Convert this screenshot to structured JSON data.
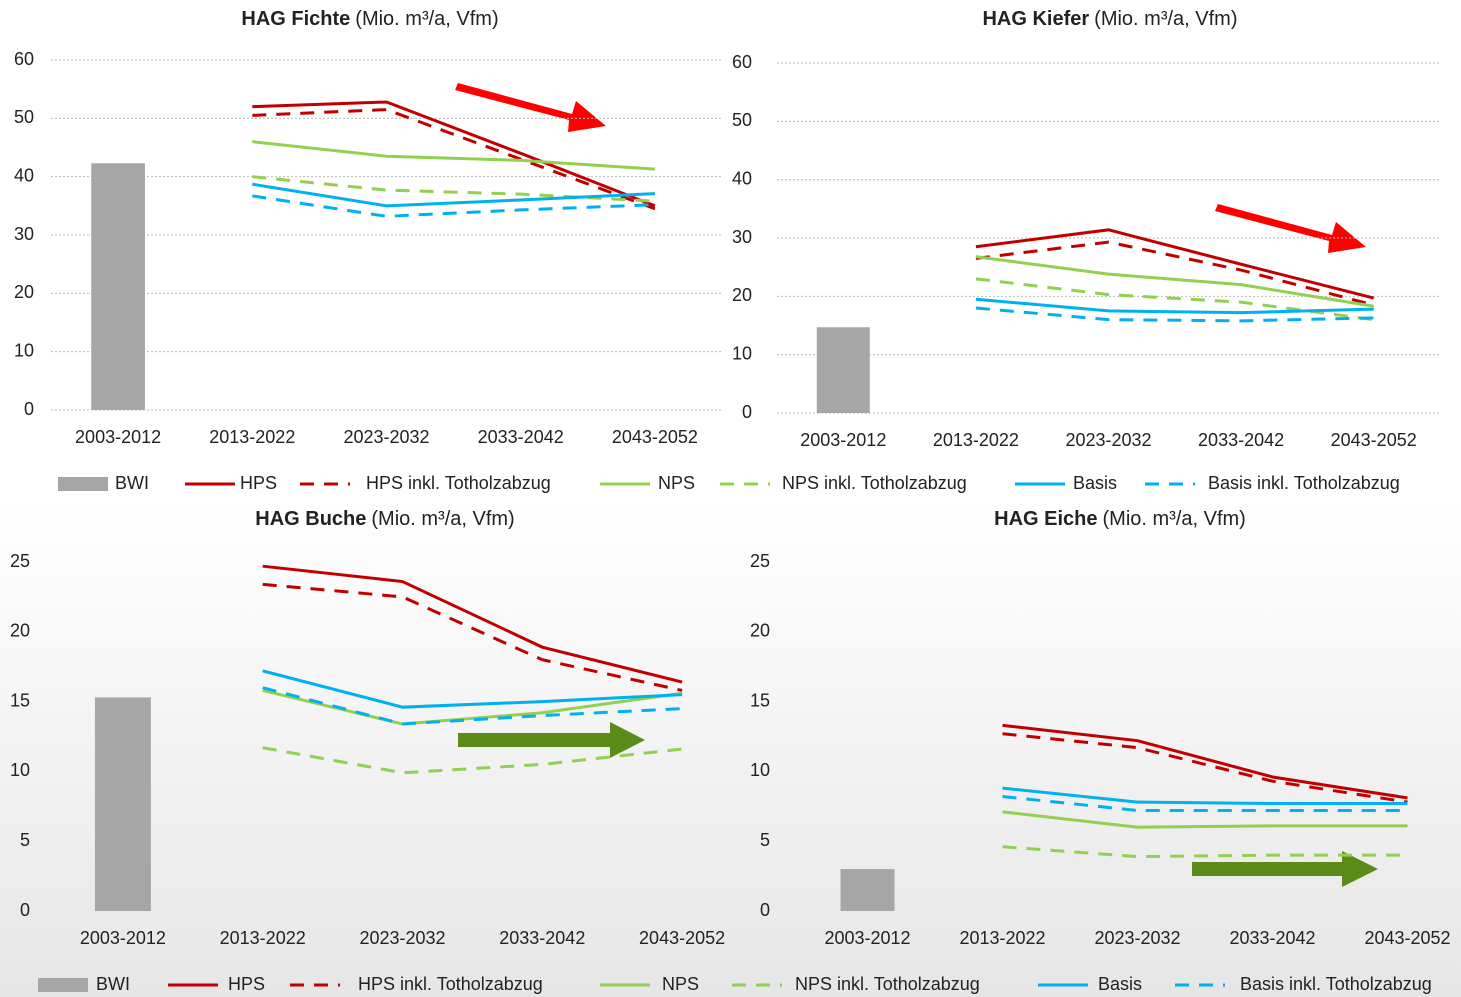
{
  "chart_data": [
    {
      "type": "line",
      "title": "HAG Fichte",
      "subtitle": "(Mio. m³/a, Vfm)",
      "categories": [
        "2003-2012",
        "2013-2022",
        "2023-2032",
        "2033-2042",
        "2043-2052"
      ],
      "ylim": [
        0,
        60
      ],
      "yticks": [
        0,
        10,
        20,
        30,
        40,
        50,
        60
      ],
      "grid": true,
      "series": [
        {
          "name": "BWI",
          "type": "bar",
          "color": "#a6a6a6",
          "values": [
            42.3,
            null,
            null,
            null,
            null
          ]
        },
        {
          "name": "HPS",
          "color": "#c00000",
          "dashed": false,
          "values": [
            null,
            52,
            52.8,
            44,
            35
          ]
        },
        {
          "name": "HPS inkl. Totholzabzug",
          "color": "#c00000",
          "dashed": true,
          "values": [
            null,
            50.5,
            51.5,
            43,
            34.5
          ]
        },
        {
          "name": "NPS",
          "color": "#92d050",
          "dashed": false,
          "values": [
            null,
            46,
            43.5,
            42.8,
            41.3
          ]
        },
        {
          "name": "NPS inkl. Totholzabzug",
          "color": "#92d050",
          "dashed": true,
          "values": [
            null,
            40,
            37.7,
            37,
            35.8
          ]
        },
        {
          "name": "Basis",
          "color": "#00b0f0",
          "dashed": false,
          "values": [
            null,
            38.7,
            35,
            36,
            37.1
          ]
        },
        {
          "name": "Basis inkl. Totholzabzug",
          "color": "#00b0f0",
          "dashed": true,
          "values": [
            null,
            36.7,
            33.2,
            34.3,
            35.2
          ]
        }
      ]
    },
    {
      "type": "line",
      "title": "HAG Kiefer",
      "subtitle": "(Mio. m³/a, Vfm)",
      "categories": [
        "2003-2012",
        "2013-2022",
        "2023-2032",
        "2033-2042",
        "2043-2052"
      ],
      "ylim": [
        0,
        60
      ],
      "yticks": [
        0,
        10,
        20,
        30,
        40,
        50,
        60
      ],
      "grid": true,
      "series": [
        {
          "name": "BWI",
          "type": "bar",
          "color": "#a6a6a6",
          "values": [
            14.7,
            null,
            null,
            null,
            null
          ]
        },
        {
          "name": "HPS",
          "color": "#c00000",
          "dashed": false,
          "values": [
            null,
            28.5,
            31.4,
            25.5,
            19.7
          ]
        },
        {
          "name": "HPS inkl. Totholzabzug",
          "color": "#c00000",
          "dashed": true,
          "values": [
            null,
            26.5,
            29.3,
            24.5,
            18.5
          ]
        },
        {
          "name": "NPS",
          "color": "#92d050",
          "dashed": false,
          "values": [
            null,
            26.8,
            23.8,
            22,
            18.3
          ]
        },
        {
          "name": "NPS inkl. Totholzabzug",
          "color": "#92d050",
          "dashed": true,
          "values": [
            null,
            23,
            20.3,
            19,
            16
          ]
        },
        {
          "name": "Basis",
          "color": "#00b0f0",
          "dashed": false,
          "values": [
            null,
            19.5,
            17.5,
            17.2,
            17.8
          ]
        },
        {
          "name": "Basis inkl. Totholzabzug",
          "color": "#00b0f0",
          "dashed": true,
          "values": [
            null,
            18,
            16,
            15.8,
            16.3
          ]
        }
      ]
    },
    {
      "type": "line",
      "title": "HAG Buche",
      "subtitle": "(Mio. m³/a, Vfm)",
      "categories": [
        "2003-2012",
        "2013-2022",
        "2023-2032",
        "2033-2042",
        "2043-2052"
      ],
      "ylim": [
        0,
        25
      ],
      "yticks": [
        0,
        5,
        10,
        15,
        20,
        25
      ],
      "grid": false,
      "series": [
        {
          "name": "BWI",
          "type": "bar",
          "color": "#a6a6a6",
          "values": [
            15.3,
            null,
            null,
            null,
            null
          ]
        },
        {
          "name": "HPS",
          "color": "#c00000",
          "dashed": false,
          "values": [
            null,
            24.7,
            23.6,
            18.9,
            16.4
          ]
        },
        {
          "name": "HPS inkl. Totholzabzug",
          "color": "#c00000",
          "dashed": true,
          "values": [
            null,
            23.4,
            22.5,
            18,
            15.8
          ]
        },
        {
          "name": "NPS",
          "color": "#92d050",
          "dashed": false,
          "values": [
            null,
            15.8,
            13.4,
            14.2,
            15.6
          ]
        },
        {
          "name": "NPS inkl. Totholzabzug",
          "color": "#92d050",
          "dashed": true,
          "values": [
            null,
            11.7,
            9.9,
            10.5,
            11.6
          ]
        },
        {
          "name": "Basis",
          "color": "#00b0f0",
          "dashed": false,
          "values": [
            null,
            17.2,
            14.6,
            15,
            15.5
          ]
        },
        {
          "name": "Basis inkl. Totholzabzug",
          "color": "#00b0f0",
          "dashed": true,
          "values": [
            null,
            16,
            13.4,
            14,
            14.5
          ]
        }
      ]
    },
    {
      "type": "line",
      "title": "HAG Eiche",
      "subtitle": "(Mio. m³/a, Vfm)",
      "categories": [
        "2003-2012",
        "2013-2022",
        "2023-2032",
        "2033-2042",
        "2043-2052"
      ],
      "ylim": [
        0,
        25
      ],
      "yticks": [
        0,
        5,
        10,
        15,
        20,
        25
      ],
      "grid": false,
      "series": [
        {
          "name": "BWI",
          "type": "bar",
          "color": "#a6a6a6",
          "values": [
            3.0,
            null,
            null,
            null,
            null
          ]
        },
        {
          "name": "HPS",
          "color": "#c00000",
          "dashed": false,
          "values": [
            null,
            13.3,
            12.2,
            9.6,
            8.1
          ]
        },
        {
          "name": "HPS inkl. Totholzabzug",
          "color": "#c00000",
          "dashed": true,
          "values": [
            null,
            12.7,
            11.7,
            9.3,
            7.8
          ]
        },
        {
          "name": "NPS",
          "color": "#92d050",
          "dashed": false,
          "values": [
            null,
            7.1,
            6.0,
            6.1,
            6.1
          ]
        },
        {
          "name": "NPS inkl. Totholzabzug",
          "color": "#92d050",
          "dashed": true,
          "values": [
            null,
            4.6,
            3.9,
            4.0,
            4.0
          ]
        },
        {
          "name": "Basis",
          "color": "#00b0f0",
          "dashed": false,
          "values": [
            null,
            8.8,
            7.8,
            7.7,
            7.7
          ]
        },
        {
          "name": "Basis inkl. Totholzabzug",
          "color": "#00b0f0",
          "dashed": true,
          "values": [
            null,
            8.2,
            7.2,
            7.2,
            7.2
          ]
        }
      ]
    }
  ]
}
